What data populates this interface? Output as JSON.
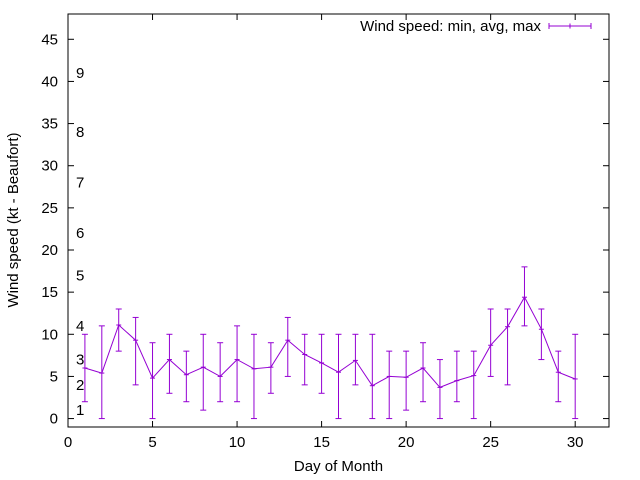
{
  "chart_data": {
    "type": "line",
    "xlabel": "Day of Month",
    "ylabel": "Wind speed (kt - Beaufort)",
    "xlim": [
      0,
      32
    ],
    "ylim": [
      -1,
      48
    ],
    "x_ticks": [
      0,
      5,
      10,
      15,
      20,
      25,
      30
    ],
    "y_ticks": [
      0,
      5,
      10,
      15,
      20,
      25,
      30,
      35,
      40,
      45
    ],
    "grid": false,
    "legend_position": "top-right",
    "series_color": "#9400d3",
    "series": [
      {
        "name": "Wind speed: min, avg, max",
        "x": [
          1,
          2,
          3,
          4,
          5,
          6,
          7,
          8,
          9,
          10,
          11,
          12,
          13,
          14,
          15,
          16,
          17,
          18,
          19,
          20,
          21,
          22,
          23,
          24,
          25,
          26,
          27,
          28,
          29,
          30
        ],
        "avg": [
          6,
          5.4,
          11.1,
          9.3,
          4.8,
          7,
          5.2,
          6.1,
          5,
          7,
          5.9,
          6.1,
          9.3,
          7.6,
          6.6,
          5.5,
          6.9,
          3.9,
          5,
          4.9,
          6,
          3.7,
          4.5,
          5.1,
          8.7,
          10.9,
          14.4,
          10.6,
          5.5,
          4.7
        ],
        "min": [
          2,
          0,
          8,
          4,
          0,
          3,
          2,
          1,
          2,
          2,
          0,
          3,
          5,
          4,
          3,
          0,
          4,
          0,
          0,
          1,
          2,
          0,
          2,
          0,
          5,
          4,
          11,
          7,
          2,
          0
        ],
        "max": [
          10,
          11,
          13,
          12,
          9,
          10,
          8,
          10,
          9,
          11,
          10,
          9,
          12,
          10,
          10,
          10,
          10,
          10,
          8,
          8,
          9,
          7,
          8,
          8,
          13,
          13,
          18,
          13,
          8,
          10
        ]
      }
    ],
    "annotations": [
      {
        "text": "1",
        "y": 1
      },
      {
        "text": "2",
        "y": 4
      },
      {
        "text": "3",
        "y": 7
      },
      {
        "text": "4",
        "y": 11
      },
      {
        "text": "5",
        "y": 17
      },
      {
        "text": "6",
        "y": 22
      },
      {
        "text": "7",
        "y": 28
      },
      {
        "text": "8",
        "y": 34
      },
      {
        "text": "9",
        "y": 41
      }
    ]
  }
}
